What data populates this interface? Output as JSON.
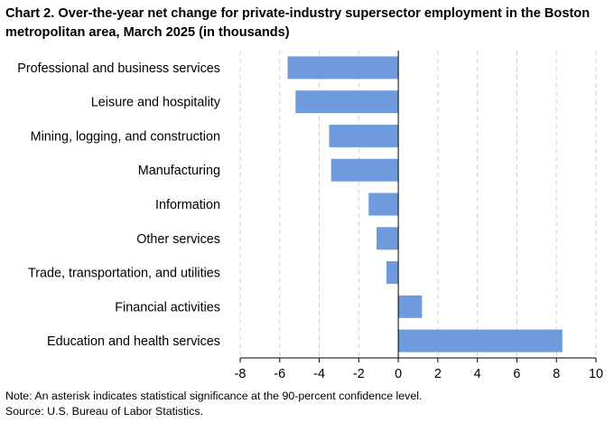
{
  "title": "Chart 2. Over-the-year net change for private-industry supersector employment in the Boston metropolitan area, March 2025 (in thousands)",
  "chart_data": {
    "type": "bar",
    "orientation": "horizontal",
    "title": "Chart 2. Over-the-year net change for private-industry supersector employment in the Boston metropolitan area, March 2025 (in thousands)",
    "xlabel": "",
    "ylabel": "",
    "xlim": [
      -8,
      10
    ],
    "xticks": [
      -8,
      -6,
      -4,
      -2,
      0,
      2,
      4,
      6,
      8,
      10
    ],
    "grid": "vertical dashed",
    "bar_color": "#6f9bdc",
    "categories": [
      "Professional and business services",
      "Leisure and hospitality",
      "Mining, logging, and construction",
      "Manufacturing",
      "Information",
      "Other services",
      "Trade, transportation, and utilities",
      "Financial activities",
      "Education and health services"
    ],
    "values": [
      -5.6,
      -5.2,
      -3.5,
      -3.4,
      -1.5,
      -1.1,
      -0.6,
      1.2,
      8.3
    ]
  },
  "footnotes": {
    "note": "Note: An asterisk indicates statistical significance at the 90-percent confidence level.",
    "source": "Source: U.S. Bureau of Labor Statistics."
  }
}
